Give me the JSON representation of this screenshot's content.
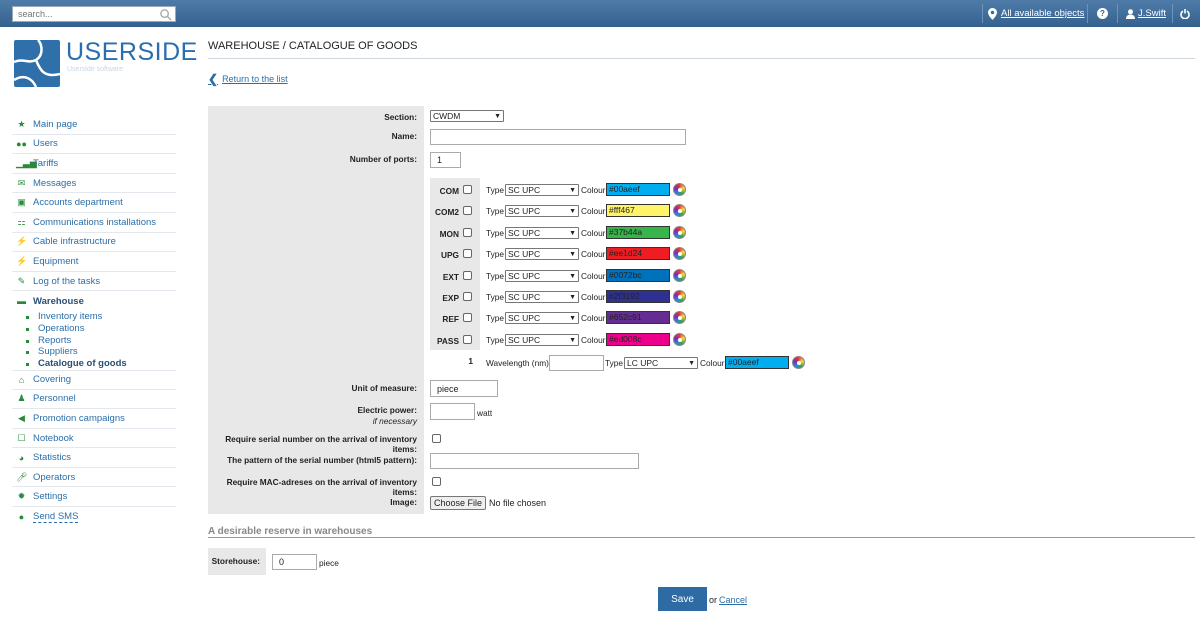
{
  "topbar": {
    "search_placeholder": "search...",
    "objects_link": "All available objects",
    "help_label": "?",
    "user_name": "J.Swift"
  },
  "logo": {
    "text": "USERSIDE",
    "subtext": "Userside software"
  },
  "nav": {
    "items": [
      {
        "label": "Main page",
        "icon": "star-icon"
      },
      {
        "label": "Users",
        "icon": "users-icon"
      },
      {
        "label": "Tariffs",
        "icon": "bar-chart-icon"
      },
      {
        "label": "Messages",
        "icon": "envelope-icon"
      },
      {
        "label": "Accounts department",
        "icon": "money-icon"
      },
      {
        "label": "Communications installations",
        "icon": "sitemap-icon"
      },
      {
        "label": "Cable infrastructure",
        "icon": "plug-icon"
      },
      {
        "label": "Equipment",
        "icon": "plug-icon"
      },
      {
        "label": "Log of the tasks",
        "icon": "wrench-icon"
      },
      {
        "label": "Warehouse",
        "icon": "archive-icon"
      },
      {
        "label": "Covering",
        "icon": "home-icon"
      },
      {
        "label": "Personnel",
        "icon": "user-icon"
      },
      {
        "label": "Promotion campaigns",
        "icon": "bullhorn-icon"
      },
      {
        "label": "Notebook",
        "icon": "notebook-icon"
      },
      {
        "label": "Statistics",
        "icon": "pie-chart-icon"
      },
      {
        "label": "Operators",
        "icon": "microphone-icon"
      },
      {
        "label": "Settings",
        "icon": "gear-icon"
      },
      {
        "label": "Send SMS",
        "icon": "chat-icon"
      }
    ],
    "warehouse_sub": [
      "Inventory items",
      "Operations",
      "Reports",
      "Suppliers",
      "Catalogue of goods"
    ]
  },
  "page": {
    "title": "WAREHOUSE / CATALOGUE OF GOODS",
    "back_link": "Return to the list"
  },
  "form": {
    "section_label": "Section:",
    "section_value": "CWDM",
    "name_label": "Name:",
    "name_value": "",
    "ports_label": "Number of ports:",
    "ports_value": "1",
    "type_label": "Type",
    "colour_label": "Colour",
    "ports": [
      {
        "name": "COM",
        "type": "SC UPC",
        "color": "#00aeef"
      },
      {
        "name": "COM2",
        "type": "SC UPC",
        "color": "#fff467"
      },
      {
        "name": "MON",
        "type": "SC UPC",
        "color": "#37b44a"
      },
      {
        "name": "UPG",
        "type": "SC UPC",
        "color": "#ee1d24"
      },
      {
        "name": "EXT",
        "type": "SC UPC",
        "color": "#0072bc"
      },
      {
        "name": "EXP",
        "type": "SC UPC",
        "color": "#2f3192"
      },
      {
        "name": "REF",
        "type": "SC UPC",
        "color": "#652c91"
      },
      {
        "name": "PASS",
        "type": "SC UPC",
        "color": "#ed008c"
      }
    ],
    "port1": {
      "number": "1",
      "wavelength_label": "Wavelength (nm)",
      "wavelength_value": "",
      "type": "LC UPC",
      "color": "#00aeef"
    },
    "unit_label": "Unit of measure:",
    "unit_value": "piece",
    "power_label": "Electric power:",
    "power_hint": "if necessary",
    "power_unit": "watt",
    "serial_req_label": "Require serial number on the arrival of inventory items:",
    "serial_pattern_label": "The pattern of the serial number (html5 pattern):",
    "mac_req_label": "Require MAC-adreses on the arrival of inventory items:",
    "image_label": "Image:",
    "file_button": "Choose File",
    "file_status": "No file chosen"
  },
  "reserve": {
    "title": "A desirable reserve in warehouses",
    "storehouse_label": "Storehouse:",
    "value": "0",
    "unit": "piece"
  },
  "actions": {
    "save": "Save",
    "or": "or",
    "cancel": "Cancel"
  }
}
